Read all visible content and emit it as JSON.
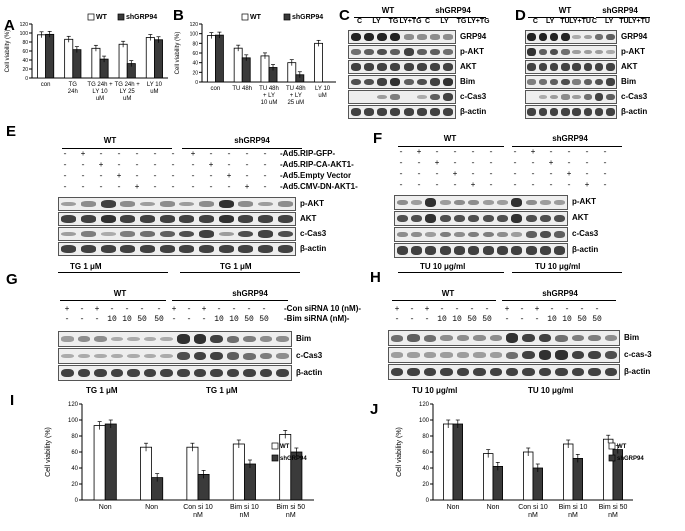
{
  "panels": {
    "A": "A",
    "B": "B",
    "C": "C",
    "D": "D",
    "E": "E",
    "F": "F",
    "G": "G",
    "H": "H",
    "I": "I",
    "J": "J"
  },
  "wt": "WT",
  "sh": "shGRP94",
  "chart_data": [
    {
      "panel": "A",
      "type": "bar",
      "ylabel": "Cell viability (%)",
      "ylim": [
        0,
        120
      ],
      "yticks": [
        0,
        20,
        40,
        60,
        80,
        100,
        120
      ],
      "categories": [
        "con",
        "TG\n24h",
        "TG 24h +\nLY 10\nuM",
        "TG 24h +\nLY 25\nuM",
        "LY 10\nuM"
      ],
      "series": [
        {
          "name": "WT",
          "values": [
            96,
            86,
            66,
            75,
            90
          ]
        },
        {
          "name": "shGRP94",
          "values": [
            97,
            63,
            42,
            32,
            85
          ]
        }
      ]
    },
    {
      "panel": "B",
      "type": "bar",
      "ylabel": "Cell viability (%)",
      "ylim": [
        0,
        120
      ],
      "yticks": [
        0,
        20,
        40,
        60,
        80,
        100,
        120
      ],
      "categories": [
        "con",
        "TU 48h",
        "TU 48h\n+ LY\n10 uM",
        "TU 48h\n+ LY\n25 uM",
        "LY 10\nuM"
      ],
      "series": [
        {
          "name": "WT",
          "values": [
            96,
            70,
            54,
            40,
            80
          ]
        },
        {
          "name": "shGRP94",
          "values": [
            97,
            50,
            30,
            15,
            ""
          ]
        }
      ]
    },
    {
      "panel": "I",
      "type": "bar",
      "ylabel": "Cell viability (%)",
      "ylim": [
        0,
        120
      ],
      "yticks": [
        0,
        20,
        40,
        60,
        80,
        100,
        120
      ],
      "categories": [
        "Non",
        "Non",
        "Con si 10\nnM",
        "Bim si 10\nnM",
        "Bim si 50\nnM"
      ],
      "series": [
        {
          "name": "WT",
          "values": [
            93,
            66,
            66,
            70,
            82
          ]
        },
        {
          "name": "shGRP94",
          "values": [
            95,
            28,
            32,
            45,
            60
          ]
        }
      ]
    },
    {
      "panel": "J",
      "type": "bar",
      "ylabel": "Cell viability (%)",
      "ylim": [
        0,
        120
      ],
      "yticks": [
        0,
        20,
        40,
        60,
        80,
        100,
        120
      ],
      "categories": [
        "Non",
        "Non",
        "Con si 10\nnM",
        "Bim si 10\nnM",
        "Bim si 50\nnM"
      ],
      "series": [
        {
          "name": "WT",
          "values": [
            95,
            58,
            60,
            70,
            76
          ]
        },
        {
          "name": "shGRP94",
          "values": [
            95,
            42,
            40,
            52,
            63
          ]
        }
      ]
    }
  ],
  "C": {
    "cols": [
      "C",
      "LY",
      "TG",
      "LY+TG",
      "C",
      "LY",
      "TG",
      "LY+TG"
    ],
    "rows": [
      "GRP94",
      "p-AKT",
      "AKT",
      "Bim",
      "c-Cas3",
      "β-actin"
    ]
  },
  "D": {
    "cols": [
      "C",
      "LY",
      "TU",
      "LY+TU",
      "C",
      "LY",
      "TU",
      "LY+TU"
    ],
    "rows": [
      "GRP94",
      "p-AKT",
      "AKT",
      "Bim",
      "c-Cas3",
      "β-actin"
    ]
  },
  "E": {
    "treatments": [
      "-Ad5.RIP-GFP-",
      "-Ad5.RIP-CA-AKT1-",
      "-Ad5.Empty Vector",
      "-Ad5.CMV-DN-AKT1-"
    ],
    "rows": [
      "p-AKT",
      "AKT",
      "c-Cas3",
      "β-actin"
    ],
    "bottom": "TG 1 μM"
  },
  "F": {
    "rows": [
      "p-AKT",
      "AKT",
      "c-Cas3",
      "β-actin"
    ],
    "bottom": "TU 10 μg/ml"
  },
  "G": {
    "treatments": [
      "-Con siRNA 10 (nM)-",
      "-Bim siRNA  (nM)-"
    ],
    "rows": [
      "Bim",
      "c-Cas3",
      "β-actin"
    ],
    "bottom": "TG 1 μM",
    "nums": [
      "10",
      "10",
      "50",
      "50"
    ]
  },
  "H": {
    "rows": [
      "Bim",
      "c-cas-3",
      "β-actin"
    ],
    "bottom": "TU 10 μg/ml",
    "nums": [
      "10",
      "10",
      "50",
      "50"
    ]
  }
}
